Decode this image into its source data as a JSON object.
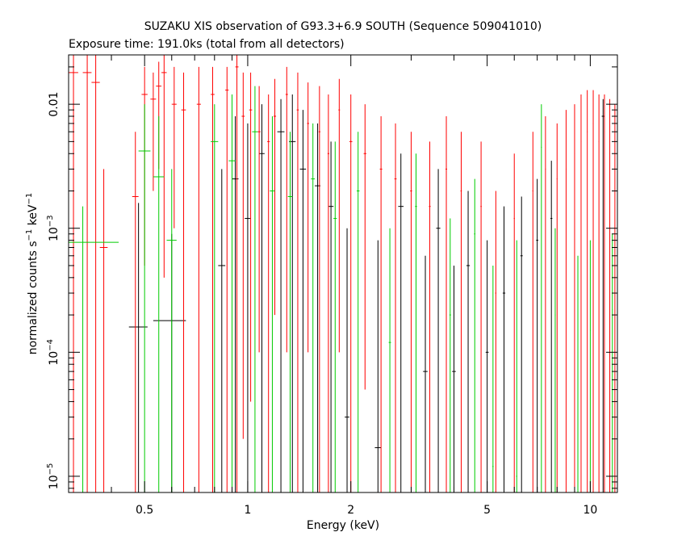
{
  "chart_data": {
    "type": "scatter",
    "title": "SUZAKU XIS observation of G93.3+6.9 SOUTH (Sequence 509041010)",
    "subtitle": "Exposure time: 191.0ks (total from all detectors)",
    "xlabel": "Energy (keV)",
    "ylabel": {
      "prefix": "normalized counts s",
      "exp1": "−1",
      "middle": " keV",
      "exp2": "−1"
    },
    "xscale": "log",
    "yscale": "log",
    "xlim": [
      0.3,
      12.0
    ],
    "ylim": [
      7.4e-06,
      0.025
    ],
    "x_ticks": [
      {
        "value": 0.5,
        "label": "0.5"
      },
      {
        "value": 1,
        "label": "1"
      },
      {
        "value": 2,
        "label": "2"
      },
      {
        "value": 5,
        "label": "5"
      },
      {
        "value": 10,
        "label": "10"
      }
    ],
    "y_ticks": [
      {
        "value": 1e-05,
        "base": "10",
        "exp": "−5"
      },
      {
        "value": 0.0001,
        "base": "10",
        "exp": "−4"
      },
      {
        "value": 0.001,
        "base": "10",
        "exp": "−3"
      },
      {
        "value": 0.01,
        "base": "0.01",
        "exp": ""
      }
    ],
    "grid": false,
    "series_colors": [
      "#000000",
      "#ff0000",
      "#00cc00"
    ],
    "series": [
      {
        "color": "#000000",
        "points": [
          {
            "x": 0.48,
            "xlo": 0.45,
            "xhi": 0.51,
            "y": 0.00016,
            "ylo": 7.4e-06,
            "yhi": 0.0016
          },
          {
            "x": 0.6,
            "xlo": 0.53,
            "xhi": 0.66,
            "y": 0.00018,
            "ylo": 7.4e-06,
            "yhi": 0.0009
          },
          {
            "x": 0.84,
            "xlo": 0.82,
            "xhi": 0.86,
            "y": 0.0005,
            "ylo": 7.4e-06,
            "yhi": 0.003
          },
          {
            "x": 0.92,
            "xlo": 0.9,
            "xhi": 0.94,
            "y": 0.0025,
            "ylo": 7.4e-06,
            "yhi": 0.008
          },
          {
            "x": 1.0,
            "xlo": 0.98,
            "xhi": 1.02,
            "y": 0.0012,
            "ylo": 7.4e-06,
            "yhi": 0.007
          },
          {
            "x": 1.1,
            "xlo": 1.08,
            "xhi": 1.12,
            "y": 0.004,
            "ylo": 7.4e-06,
            "yhi": 0.01
          },
          {
            "x": 1.25,
            "xlo": 1.22,
            "xhi": 1.28,
            "y": 0.006,
            "ylo": 7.4e-06,
            "yhi": 0.011
          },
          {
            "x": 1.35,
            "xlo": 1.32,
            "xhi": 1.38,
            "y": 0.005,
            "ylo": 7.4e-06,
            "yhi": 0.012
          },
          {
            "x": 1.45,
            "xlo": 1.42,
            "xhi": 1.48,
            "y": 0.003,
            "ylo": 7.4e-06,
            "yhi": 0.009
          },
          {
            "x": 1.6,
            "xlo": 1.57,
            "xhi": 1.63,
            "y": 0.0022,
            "ylo": 7.4e-06,
            "yhi": 0.007
          },
          {
            "x": 1.75,
            "xlo": 1.72,
            "xhi": 1.78,
            "y": 0.0015,
            "ylo": 7.4e-06,
            "yhi": 0.005
          },
          {
            "x": 1.95,
            "xlo": 1.92,
            "xhi": 1.98,
            "y": 3e-05,
            "ylo": 7.4e-06,
            "yhi": 0.001
          },
          {
            "x": 2.4,
            "xlo": 2.35,
            "xhi": 2.45,
            "y": 1.7e-05,
            "ylo": 7.4e-06,
            "yhi": 0.0008
          },
          {
            "x": 2.8,
            "xlo": 2.75,
            "xhi": 2.85,
            "y": 0.0015,
            "ylo": 7.4e-06,
            "yhi": 0.004
          },
          {
            "x": 3.3,
            "xlo": 3.25,
            "xhi": 3.35,
            "y": 7e-05,
            "ylo": 7.4e-06,
            "yhi": 0.0006
          },
          {
            "x": 3.6,
            "xlo": 3.55,
            "xhi": 3.65,
            "y": 0.001,
            "ylo": 7.4e-06,
            "yhi": 0.003
          },
          {
            "x": 4.0,
            "xlo": 3.95,
            "xhi": 4.05,
            "y": 7e-05,
            "ylo": 7.4e-06,
            "yhi": 0.0005
          },
          {
            "x": 4.4,
            "xlo": 4.35,
            "xhi": 4.45,
            "y": 0.0005,
            "ylo": 7.4e-06,
            "yhi": 0.002
          },
          {
            "x": 5.0,
            "xlo": 4.95,
            "xhi": 5.05,
            "y": 0.0001,
            "ylo": 7.4e-06,
            "yhi": 0.0008
          },
          {
            "x": 5.6,
            "xlo": 5.55,
            "xhi": 5.65,
            "y": 0.0003,
            "ylo": 7.4e-06,
            "yhi": 0.0015
          },
          {
            "x": 6.3,
            "xlo": 6.25,
            "xhi": 6.35,
            "y": 0.0006,
            "ylo": 7.4e-06,
            "yhi": 0.0018
          },
          {
            "x": 7.0,
            "xlo": 6.95,
            "xhi": 7.05,
            "y": 0.0008,
            "ylo": 7.4e-06,
            "yhi": 0.0025
          },
          {
            "x": 7.7,
            "xlo": 7.65,
            "xhi": 7.75,
            "y": 0.0012,
            "ylo": 7.4e-06,
            "yhi": 0.0035
          },
          {
            "x": 10.9,
            "xlo": 10.8,
            "xhi": 11.0,
            "y": 0.008,
            "ylo": 7.4e-06,
            "yhi": 0.011
          }
        ]
      },
      {
        "color": "#ff0000",
        "points": [
          {
            "x": 0.31,
            "xlo": 0.3,
            "xhi": 0.32,
            "y": 0.018,
            "ylo": 7.4e-06,
            "yhi": 0.025
          },
          {
            "x": 0.34,
            "xlo": 0.33,
            "xhi": 0.35,
            "y": 0.018,
            "ylo": 7.4e-06,
            "yhi": 0.025
          },
          {
            "x": 0.36,
            "xlo": 0.35,
            "xhi": 0.37,
            "y": 0.015,
            "ylo": 7.4e-06,
            "yhi": 0.025
          },
          {
            "x": 0.38,
            "xlo": 0.37,
            "xhi": 0.39,
            "y": 0.0007,
            "ylo": 7.4e-06,
            "yhi": 0.003
          },
          {
            "x": 0.47,
            "xlo": 0.46,
            "xhi": 0.48,
            "y": 0.0018,
            "ylo": 7.4e-06,
            "yhi": 0.006
          },
          {
            "x": 0.5,
            "xlo": 0.49,
            "xhi": 0.51,
            "y": 0.012,
            "ylo": 0.0005,
            "yhi": 0.02
          },
          {
            "x": 0.53,
            "xlo": 0.52,
            "xhi": 0.54,
            "y": 0.011,
            "ylo": 0.002,
            "yhi": 0.018
          },
          {
            "x": 0.55,
            "xlo": 0.54,
            "xhi": 0.56,
            "y": 0.014,
            "ylo": 0.003,
            "yhi": 0.022
          },
          {
            "x": 0.57,
            "xlo": 0.56,
            "xhi": 0.58,
            "y": 0.018,
            "ylo": 0.0004,
            "yhi": 0.025
          },
          {
            "x": 0.61,
            "xlo": 0.6,
            "xhi": 0.62,
            "y": 0.01,
            "ylo": 0.001,
            "yhi": 0.02
          },
          {
            "x": 0.65,
            "xlo": 0.64,
            "xhi": 0.66,
            "y": 0.009,
            "ylo": 7.4e-06,
            "yhi": 0.018
          },
          {
            "x": 0.72,
            "xlo": 0.71,
            "xhi": 0.73,
            "y": 0.01,
            "ylo": 7.4e-06,
            "yhi": 0.02
          },
          {
            "x": 0.79,
            "xlo": 0.78,
            "xhi": 0.8,
            "y": 0.012,
            "ylo": 7.4e-06,
            "yhi": 0.02
          },
          {
            "x": 0.87,
            "xlo": 0.86,
            "xhi": 0.88,
            "y": 0.013,
            "ylo": 7.4e-06,
            "yhi": 0.02
          },
          {
            "x": 0.93,
            "xlo": 0.92,
            "xhi": 0.94,
            "y": 0.02,
            "ylo": 7.4e-06,
            "yhi": 0.025
          },
          {
            "x": 0.97,
            "xlo": 0.96,
            "xhi": 0.98,
            "y": 0.008,
            "ylo": 2e-05,
            "yhi": 0.018
          },
          {
            "x": 1.02,
            "xlo": 1.01,
            "xhi": 1.03,
            "y": 0.009,
            "ylo": 4e-05,
            "yhi": 0.018
          },
          {
            "x": 1.08,
            "xlo": 1.07,
            "xhi": 1.09,
            "y": 0.006,
            "ylo": 0.0001,
            "yhi": 0.014
          },
          {
            "x": 1.15,
            "xlo": 1.14,
            "xhi": 1.16,
            "y": 0.005,
            "ylo": 7.4e-06,
            "yhi": 0.012
          },
          {
            "x": 1.2,
            "xlo": 1.19,
            "xhi": 1.21,
            "y": 0.008,
            "ylo": 0.0002,
            "yhi": 0.016
          },
          {
            "x": 1.3,
            "xlo": 1.29,
            "xhi": 1.31,
            "y": 0.012,
            "ylo": 0.0001,
            "yhi": 0.02
          },
          {
            "x": 1.4,
            "xlo": 1.39,
            "xhi": 1.41,
            "y": 0.009,
            "ylo": 7.4e-06,
            "yhi": 0.018
          },
          {
            "x": 1.5,
            "xlo": 1.49,
            "xhi": 1.51,
            "y": 0.007,
            "ylo": 0.0001,
            "yhi": 0.015
          },
          {
            "x": 1.62,
            "xlo": 1.61,
            "xhi": 1.63,
            "y": 0.006,
            "ylo": 7.4e-06,
            "yhi": 0.014
          },
          {
            "x": 1.72,
            "xlo": 1.71,
            "xhi": 1.73,
            "y": 0.004,
            "ylo": 7.4e-06,
            "yhi": 0.012
          },
          {
            "x": 1.85,
            "xlo": 1.84,
            "xhi": 1.86,
            "y": 0.009,
            "ylo": 0.0001,
            "yhi": 0.016
          },
          {
            "x": 2.0,
            "xlo": 1.98,
            "xhi": 2.02,
            "y": 0.005,
            "ylo": 7.4e-06,
            "yhi": 0.012
          },
          {
            "x": 2.2,
            "xlo": 2.18,
            "xhi": 2.22,
            "y": 0.004,
            "ylo": 5e-05,
            "yhi": 0.01
          },
          {
            "x": 2.45,
            "xlo": 2.43,
            "xhi": 2.47,
            "y": 0.003,
            "ylo": 7.4e-06,
            "yhi": 0.008
          },
          {
            "x": 2.7,
            "xlo": 2.68,
            "xhi": 2.72,
            "y": 0.0025,
            "ylo": 7.4e-06,
            "yhi": 0.007
          },
          {
            "x": 3.0,
            "xlo": 2.98,
            "xhi": 3.02,
            "y": 0.002,
            "ylo": 7.4e-06,
            "yhi": 0.006
          },
          {
            "x": 3.4,
            "xlo": 3.38,
            "xhi": 3.42,
            "y": 0.0015,
            "ylo": 7.4e-06,
            "yhi": 0.005
          },
          {
            "x": 3.8,
            "xlo": 3.78,
            "xhi": 3.82,
            "y": 0.003,
            "ylo": 7.4e-06,
            "yhi": 0.008
          },
          {
            "x": 4.2,
            "xlo": 4.18,
            "xhi": 4.22,
            "y": 0.002,
            "ylo": 7.4e-06,
            "yhi": 0.006
          },
          {
            "x": 4.8,
            "xlo": 4.78,
            "xhi": 4.82,
            "y": 0.0015,
            "ylo": 7.4e-06,
            "yhi": 0.005
          },
          {
            "x": 5.3,
            "xlo": 5.28,
            "xhi": 5.32,
            "y": 0.0003,
            "ylo": 7.4e-06,
            "yhi": 0.002
          },
          {
            "x": 6.0,
            "xlo": 5.98,
            "xhi": 6.02,
            "y": 0.0012,
            "ylo": 7.4e-06,
            "yhi": 0.004
          },
          {
            "x": 6.8,
            "xlo": 6.78,
            "xhi": 6.82,
            "y": 0.002,
            "ylo": 7.4e-06,
            "yhi": 0.006
          },
          {
            "x": 7.4,
            "xlo": 7.38,
            "xhi": 7.42,
            "y": 0.003,
            "ylo": 7.4e-06,
            "yhi": 0.008
          },
          {
            "x": 8.0,
            "xlo": 7.98,
            "xhi": 8.02,
            "y": 0.0025,
            "ylo": 7.4e-06,
            "yhi": 0.007
          },
          {
            "x": 8.5,
            "xlo": 8.48,
            "xhi": 8.52,
            "y": 0.003,
            "ylo": 7.4e-06,
            "yhi": 0.009
          },
          {
            "x": 9.0,
            "xlo": 8.98,
            "xhi": 9.02,
            "y": 0.004,
            "ylo": 7.4e-06,
            "yhi": 0.01
          },
          {
            "x": 9.4,
            "xlo": 9.38,
            "xhi": 9.42,
            "y": 0.005,
            "ylo": 7.4e-06,
            "yhi": 0.012
          },
          {
            "x": 9.8,
            "xlo": 9.78,
            "xhi": 9.82,
            "y": 0.006,
            "ylo": 7.4e-06,
            "yhi": 0.013
          },
          {
            "x": 10.2,
            "xlo": 10.18,
            "xhi": 10.22,
            "y": 0.007,
            "ylo": 7.4e-06,
            "yhi": 0.013
          },
          {
            "x": 10.6,
            "xlo": 10.58,
            "xhi": 10.62,
            "y": 0.005,
            "ylo": 7.4e-06,
            "yhi": 0.012
          },
          {
            "x": 11.0,
            "xlo": 10.98,
            "xhi": 11.02,
            "y": 0.006,
            "ylo": 7.4e-06,
            "yhi": 0.012
          },
          {
            "x": 11.4,
            "xlo": 11.38,
            "xhi": 11.42,
            "y": 0.004,
            "ylo": 7.4e-06,
            "yhi": 0.011
          },
          {
            "x": 11.8,
            "xlo": 11.78,
            "xhi": 11.82,
            "y": 0.003,
            "ylo": 7.4e-06,
            "yhi": 0.01
          }
        ]
      },
      {
        "color": "#00cc00",
        "points": [
          {
            "x": 0.33,
            "xlo": 0.3,
            "xhi": 0.42,
            "y": 0.00077,
            "ylo": 7.4e-06,
            "yhi": 0.0015
          },
          {
            "x": 0.5,
            "xlo": 0.48,
            "xhi": 0.52,
            "y": 0.0042,
            "ylo": 7.4e-06,
            "yhi": 0.01
          },
          {
            "x": 0.55,
            "xlo": 0.53,
            "xhi": 0.57,
            "y": 0.0026,
            "ylo": 7.4e-06,
            "yhi": 0.008
          },
          {
            "x": 0.6,
            "xlo": 0.58,
            "xhi": 0.62,
            "y": 0.0008,
            "ylo": 7.4e-06,
            "yhi": 0.003
          },
          {
            "x": 0.8,
            "xlo": 0.78,
            "xhi": 0.82,
            "y": 0.005,
            "ylo": 7.4e-06,
            "yhi": 0.01
          },
          {
            "x": 0.9,
            "xlo": 0.88,
            "xhi": 0.92,
            "y": 0.0035,
            "ylo": 7.4e-06,
            "yhi": 0.012
          },
          {
            "x": 1.05,
            "xlo": 1.03,
            "xhi": 1.07,
            "y": 0.006,
            "ylo": 7.4e-06,
            "yhi": 0.014
          },
          {
            "x": 1.18,
            "xlo": 1.16,
            "xhi": 1.2,
            "y": 0.002,
            "ylo": 7.4e-06,
            "yhi": 0.008
          },
          {
            "x": 1.33,
            "xlo": 1.31,
            "xhi": 1.35,
            "y": 0.0018,
            "ylo": 7.4e-06,
            "yhi": 0.006
          },
          {
            "x": 1.55,
            "xlo": 1.53,
            "xhi": 1.57,
            "y": 0.0025,
            "ylo": 7.4e-06,
            "yhi": 0.007
          },
          {
            "x": 1.8,
            "xlo": 1.78,
            "xhi": 1.82,
            "y": 0.0012,
            "ylo": 7.4e-06,
            "yhi": 0.005
          },
          {
            "x": 2.1,
            "xlo": 2.08,
            "xhi": 2.12,
            "y": 0.002,
            "ylo": 7.4e-06,
            "yhi": 0.006
          },
          {
            "x": 2.6,
            "xlo": 2.58,
            "xhi": 2.62,
            "y": 0.00012,
            "ylo": 7.4e-06,
            "yhi": 0.001
          },
          {
            "x": 3.1,
            "xlo": 3.08,
            "xhi": 3.12,
            "y": 0.0015,
            "ylo": 7.4e-06,
            "yhi": 0.004
          },
          {
            "x": 3.9,
            "xlo": 3.88,
            "xhi": 3.92,
            "y": 0.0002,
            "ylo": 7.4e-06,
            "yhi": 0.0012
          },
          {
            "x": 4.6,
            "xlo": 4.58,
            "xhi": 4.62,
            "y": 0.0009,
            "ylo": 7.4e-06,
            "yhi": 0.0025
          },
          {
            "x": 5.2,
            "xlo": 5.18,
            "xhi": 5.22,
            "y": 1.2e-05,
            "ylo": 7.4e-06,
            "yhi": 0.0005
          },
          {
            "x": 6.1,
            "xlo": 6.08,
            "xhi": 6.12,
            "y": 1e-05,
            "ylo": 7.4e-06,
            "yhi": 0.0008
          },
          {
            "x": 7.2,
            "xlo": 7.18,
            "xhi": 7.22,
            "y": 0.0045,
            "ylo": 7.4e-06,
            "yhi": 0.01
          },
          {
            "x": 7.9,
            "xlo": 7.88,
            "xhi": 7.92,
            "y": 0.0002,
            "ylo": 7.4e-06,
            "yhi": 0.001
          },
          {
            "x": 9.2,
            "xlo": 9.18,
            "xhi": 9.22,
            "y": 0.0001,
            "ylo": 7.4e-06,
            "yhi": 0.0006
          },
          {
            "x": 10.0,
            "xlo": 9.98,
            "xhi": 10.02,
            "y": 0.00015,
            "ylo": 7.4e-06,
            "yhi": 0.0008
          },
          {
            "x": 11.6,
            "xlo": 11.58,
            "xhi": 11.62,
            "y": 0.00022,
            "ylo": 7.4e-06,
            "yhi": 0.0009
          }
        ]
      }
    ]
  }
}
